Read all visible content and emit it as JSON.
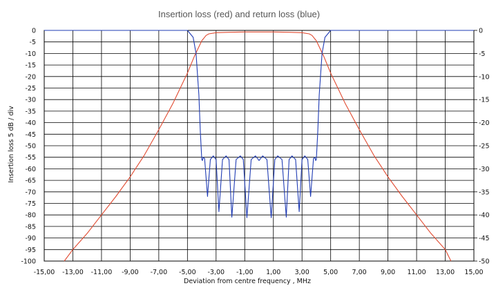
{
  "chart_data": {
    "type": "line",
    "title": "Insertion loss (red) and return loss (blue)",
    "xlabel": "Deviation from centre frequency ,  MHz",
    "ylabel": "Insertion loss   5 dB / div",
    "xlim": [
      -15,
      15
    ],
    "ylim_left": [
      -100,
      0
    ],
    "ylim_right": [
      -50,
      0
    ],
    "grid": true,
    "x_ticks": [
      "-15,00",
      "-13,00",
      "-11,00",
      "-9,00",
      "-7,00",
      "-5,00",
      "-3,00",
      "-1,00",
      "1,00",
      "3,00",
      "5,00",
      "7,00",
      "9,00",
      "11,00",
      "13,00",
      "15,00"
    ],
    "y_ticks_left": [
      "0",
      "-5",
      "-10",
      "-15",
      "-20",
      "-25",
      "-30",
      "-35",
      "-40",
      "-45",
      "-50",
      "-55",
      "-60",
      "-65",
      "-70",
      "-75",
      "-80",
      "-85",
      "-90",
      "-95",
      "-100"
    ],
    "y_ticks_right": [
      "0",
      "-5",
      "-10",
      "-15",
      "-20",
      "-25",
      "-30",
      "-35",
      "-40",
      "-45",
      "-50"
    ],
    "colors": {
      "insertion_loss": "#e0492f",
      "return_loss": "#1f3bb3",
      "grid": "#000000"
    },
    "series": [
      {
        "axis": "left",
        "color": "#e0492f",
        "x": [
          -13.6,
          -13.0,
          -12.0,
          -11.0,
          -10.0,
          -9.0,
          -8.0,
          -7.0,
          -6.0,
          -5.0,
          -4.5,
          -4.0,
          -3.7,
          -3.5,
          -3.0,
          -2.0,
          -1.0,
          0.0,
          1.0,
          2.0,
          3.0,
          3.5,
          3.7,
          4.0,
          4.5,
          5.0,
          6.0,
          7.0,
          8.0,
          9.0,
          10.0,
          11.0,
          12.0,
          13.0,
          13.4
        ],
        "y": [
          -100,
          -95,
          -88,
          -80,
          -72,
          -63.5,
          -54,
          -43,
          -31.5,
          -18.5,
          -11,
          -4.5,
          -2.2,
          -1.5,
          -1.0,
          -0.8,
          -0.7,
          -0.7,
          -0.7,
          -0.8,
          -1.0,
          -1.5,
          -2.2,
          -4.5,
          -11,
          -18.5,
          -31.5,
          -43,
          -54,
          -63.5,
          -72,
          -80,
          -88,
          -95,
          -100
        ]
      },
      {
        "axis": "right",
        "color": "#1f3bb3",
        "x": [
          -15.0,
          -5.0,
          -4.6,
          -4.4,
          -4.2,
          -4.1,
          -4.0,
          -3.95,
          -3.9,
          -3.8,
          -3.6,
          -3.4,
          -3.2,
          -3.0,
          -2.8,
          -2.55,
          -2.3,
          -2.1,
          -1.9,
          -1.6,
          -1.3,
          -1.1,
          -0.85,
          -0.55,
          -0.25,
          0.0,
          0.25,
          0.55,
          0.85,
          1.1,
          1.3,
          1.6,
          1.9,
          2.1,
          2.3,
          2.55,
          2.8,
          3.0,
          3.2,
          3.4,
          3.6,
          3.8,
          3.9,
          3.95,
          4.0,
          4.1,
          4.2,
          4.4,
          4.6,
          5.0,
          15.0
        ],
        "y": [
          0,
          0,
          -1.5,
          -5,
          -14,
          -22,
          -28,
          -28.2,
          -27.5,
          -27.8,
          -36,
          -28,
          -27.2,
          -28,
          -39.3,
          -28,
          -27.2,
          -28,
          -40.5,
          -28,
          -27.2,
          -28,
          -40.6,
          -28,
          -27.2,
          -28.2,
          -27.2,
          -28,
          -40.6,
          -28,
          -27.2,
          -28,
          -40.5,
          -28,
          -27.2,
          -28,
          -39.3,
          -28,
          -27.2,
          -28,
          -36,
          -27.8,
          -27.5,
          -28.2,
          -28,
          -22,
          -14,
          -5,
          -1.5,
          0,
          0
        ]
      }
    ]
  }
}
